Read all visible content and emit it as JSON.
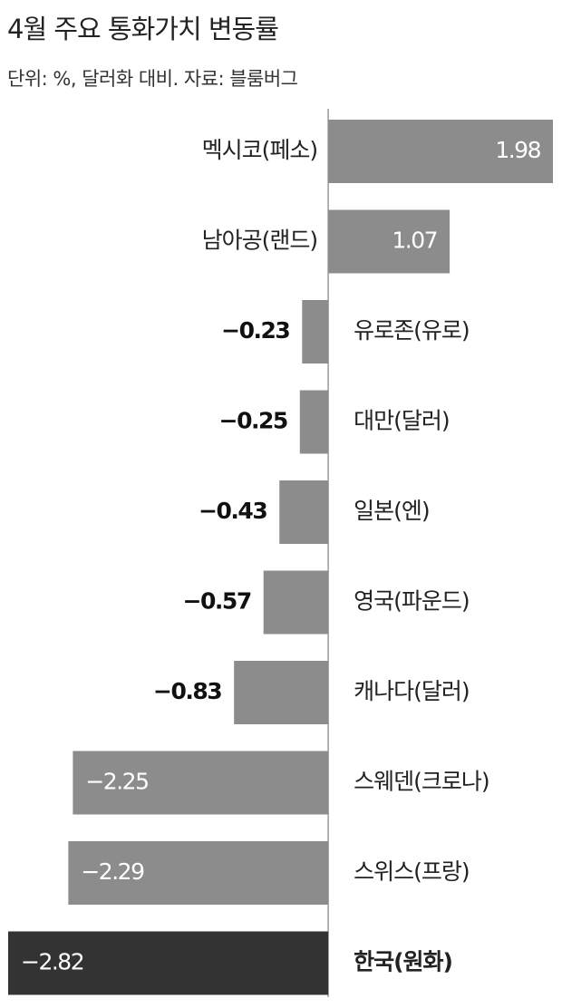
{
  "chart_data": {
    "type": "hbar",
    "title": "4월 주요 통화가치 변동률",
    "subtitle": "단위: %, 달러화 대비. 자료: 블룸버그",
    "categories": [
      "멕시코(페소)",
      "남아공(랜드)",
      "유로존(유로)",
      "대만(달러)",
      "일본(엔)",
      "영국(파운드)",
      "캐나다(달러)",
      "스웨덴(크로나)",
      "스위스(프랑)",
      "한국(원화)"
    ],
    "values": [
      1.98,
      1.07,
      -0.23,
      -0.25,
      -0.43,
      -0.57,
      -0.83,
      -2.25,
      -2.29,
      -2.82
    ],
    "value_labels": [
      "1.98",
      "1.07",
      "−0.23",
      "−0.25",
      "−0.43",
      "−0.57",
      "−0.83",
      "−2.25",
      "−2.29",
      "−2.82"
    ],
    "colors": [
      "#8c8c8c",
      "#8c8c8c",
      "#8c8c8c",
      "#8c8c8c",
      "#8c8c8c",
      "#8c8c8c",
      "#8c8c8c",
      "#8c8c8c",
      "#8c8c8c",
      "#333333"
    ]
  }
}
